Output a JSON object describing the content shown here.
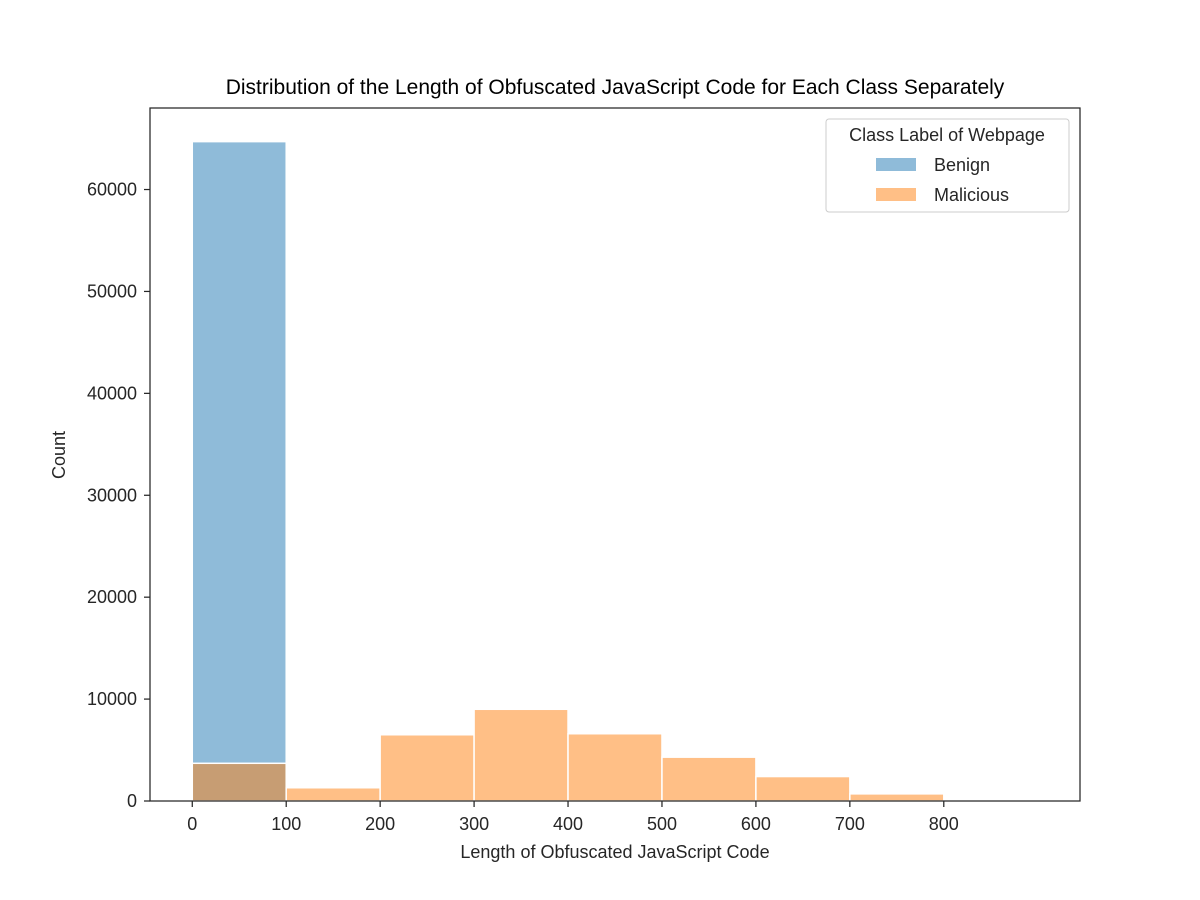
{
  "chart_data": {
    "type": "bar",
    "title": "Distribution of the Length of Obfuscated JavaScript Code for Each Class Separately",
    "xlabel": "Length of Obfuscated JavaScript Code",
    "ylabel": "Count",
    "xlim": [
      -45,
      945
    ],
    "ylim": [
      0,
      68000
    ],
    "xticks": [
      0,
      100,
      200,
      300,
      400,
      500,
      600,
      700,
      800
    ],
    "yticks": [
      0,
      10000,
      20000,
      30000,
      40000,
      50000,
      60000
    ],
    "bin_edges": [
      0,
      100,
      200,
      300,
      400,
      500,
      600,
      700,
      800
    ],
    "series": [
      {
        "name": "Benign",
        "color": "#1f77b4",
        "opacity": 0.5,
        "values": [
          64700,
          0,
          0,
          0,
          0,
          0,
          0,
          0
        ]
      },
      {
        "name": "Malicious",
        "color": "#ff7f0e",
        "opacity": 0.5,
        "values": [
          3700,
          1300,
          6500,
          9000,
          6600,
          4300,
          2400,
          700
        ]
      }
    ],
    "legend": {
      "title": "Class Label of Webpage",
      "position": "top-right"
    },
    "grid": false
  }
}
